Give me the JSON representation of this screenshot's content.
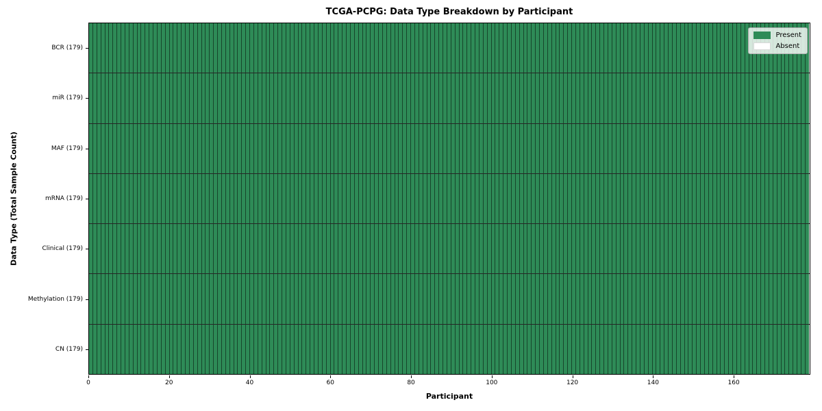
{
  "chart_data": {
    "type": "heatmap",
    "title": "TCGA-PCPG: Data Type Breakdown by Participant",
    "xlabel": "Participant",
    "ylabel": "Data Type (Total Sample Count)",
    "n_participants": 179,
    "x_range": [
      0,
      179
    ],
    "x_ticks": [
      0,
      20,
      40,
      60,
      80,
      100,
      120,
      140,
      160
    ],
    "rows": [
      {
        "data_type": "BCR",
        "label": "BCR (179)",
        "total_samples": 179,
        "present_count": 179,
        "absent_count": 0,
        "absent_indices": []
      },
      {
        "data_type": "miR",
        "label": "miR (179)",
        "total_samples": 179,
        "present_count": 179,
        "absent_count": 0,
        "absent_indices": []
      },
      {
        "data_type": "MAF",
        "label": "MAF (179)",
        "total_samples": 179,
        "present_count": 179,
        "absent_count": 0,
        "absent_indices": []
      },
      {
        "data_type": "mRNA",
        "label": "mRNA (179)",
        "total_samples": 179,
        "present_count": 179,
        "absent_count": 0,
        "absent_indices": []
      },
      {
        "data_type": "Clinical",
        "label": "Clinical (179)",
        "total_samples": 179,
        "present_count": 179,
        "absent_count": 0,
        "absent_indices": []
      },
      {
        "data_type": "Methylation",
        "label": "Methylation (179)",
        "total_samples": 179,
        "present_count": 179,
        "absent_count": 0,
        "absent_indices": []
      },
      {
        "data_type": "CN",
        "label": "CN (179)",
        "total_samples": 179,
        "present_count": 179,
        "absent_count": 0,
        "absent_indices": []
      }
    ],
    "legend": {
      "position": "upper right",
      "entries": [
        {
          "key": "present",
          "label": "Present",
          "color": "#2e8b57"
        },
        {
          "key": "absent",
          "label": "Absent",
          "color": "#ffffff"
        }
      ]
    },
    "colors": {
      "present": "#2e8b57",
      "absent": "#ffffff",
      "cell_edge": "rgba(0,0,0,0.50)",
      "row_divider": "rgba(0,0,0,0.85)",
      "spine": "#000000",
      "background": "#ffffff"
    },
    "grid": "cell-edges-on",
    "legend_visible": true
  }
}
